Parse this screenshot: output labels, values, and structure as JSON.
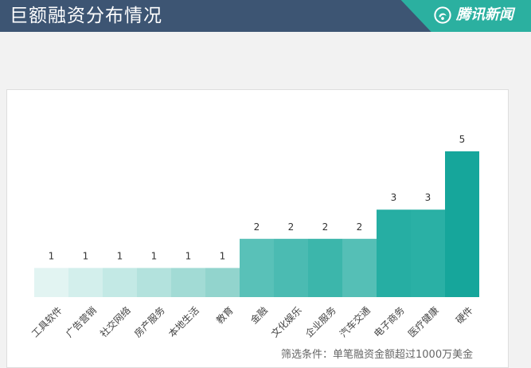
{
  "header": {
    "title": "巨额融资分布情况",
    "brand_name": "腾讯新闻",
    "brand_logo_icon": "tencent-news-logo-icon",
    "background": "#3d5573",
    "brand_color": "#2bb0a0"
  },
  "footnote": "筛选条件：单笔融资金额超过1000万美金",
  "chart_data": {
    "type": "bar",
    "title": "巨额融资分布情况",
    "xlabel": "",
    "ylabel": "",
    "categories": [
      "工具软件",
      "广告营销",
      "社交网络",
      "房产服务",
      "本地生活",
      "教育",
      "金融",
      "文化娱乐",
      "企业服务",
      "汽车交通",
      "电子商务",
      "医疗健康",
      "硬件"
    ],
    "values": [
      1,
      1,
      1,
      1,
      1,
      1,
      2,
      2,
      2,
      2,
      3,
      3,
      5
    ],
    "colors": [
      "#e2f4f2",
      "#d3efec",
      "#c3e9e5",
      "#b3e2dd",
      "#a2dbd5",
      "#92d4cd",
      "#59c1b8",
      "#4bbbb2",
      "#3cb6ab",
      "#55bfb6",
      "#26aea3",
      "#2ab0a5",
      "#16a69b"
    ],
    "ylim": [
      0,
      5
    ],
    "grid": false,
    "legend": "none"
  }
}
